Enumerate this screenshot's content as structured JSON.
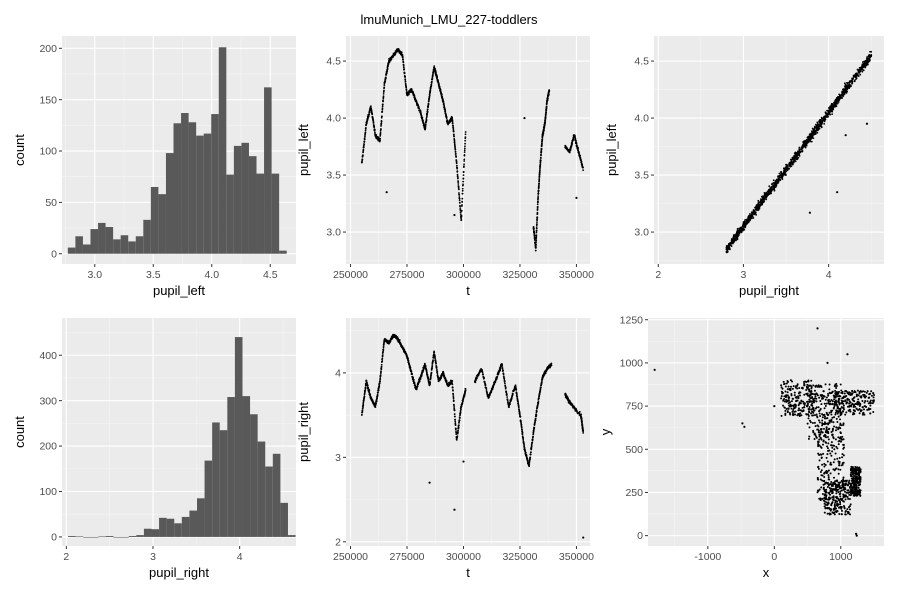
{
  "figure": {
    "title": "lmuMunich_LMU_227-toddlers",
    "colors": {
      "panel_bg": "#ebebeb",
      "grid_major": "#ffffff",
      "bar_fill": "#595959",
      "point": "#000000",
      "tick_text": "#4d4d4d"
    }
  },
  "chart_data": [
    {
      "type": "bar",
      "subtype": "histogram",
      "xlabel": "pupil_left",
      "ylabel": "count",
      "xlim": [
        2.72,
        4.72
      ],
      "ylim": [
        -10,
        212
      ],
      "xticks": [
        3.0,
        3.5,
        4.0,
        4.5
      ],
      "yticks": [
        0,
        50,
        100,
        150,
        200
      ],
      "xtick_labels": [
        "3.0",
        "3.5",
        "4.0",
        "4.5"
      ],
      "ytick_labels": [
        "0",
        "50",
        "100",
        "150",
        "200"
      ],
      "bin_start": 2.77,
      "bin_width": 0.0645,
      "values": [
        6,
        17,
        9,
        24,
        30,
        26,
        14,
        18,
        12,
        17,
        33,
        65,
        58,
        98,
        127,
        137,
        128,
        115,
        117,
        136,
        201,
        77,
        105,
        108,
        95,
        78,
        162,
        78,
        3
      ]
    },
    {
      "type": "scatter",
      "xlabel": "t",
      "ylabel": "pupil_left",
      "xlim": [
        248000,
        356000
      ],
      "ylim": [
        2.72,
        4.72
      ],
      "xticks": [
        250000,
        275000,
        300000,
        325000,
        350000
      ],
      "yticks": [
        3.0,
        3.5,
        4.0,
        4.5
      ],
      "xtick_labels": [
        "250000",
        "275000",
        "300000",
        "325000",
        "350000"
      ],
      "ytick_labels": [
        "3.0",
        "3.5",
        "4.0",
        "4.5"
      ],
      "segments": [
        {
          "x": [
            255000,
            257000,
            259000,
            261000,
            263000,
            265000,
            267000,
            269000,
            271000,
            273000,
            275000,
            277000,
            279000,
            281000,
            283000,
            285000,
            287000,
            289000,
            291000,
            293000,
            295000,
            297000,
            299000,
            301000
          ],
          "y": [
            3.6,
            3.95,
            4.1,
            3.85,
            3.8,
            4.3,
            4.5,
            4.55,
            4.6,
            4.55,
            4.2,
            4.25,
            4.15,
            4.05,
            3.9,
            4.2,
            4.45,
            4.3,
            4.15,
            3.95,
            4.0,
            3.6,
            3.1,
            3.9
          ]
        },
        {
          "x": [
            331000,
            332000,
            333000,
            334000,
            335000,
            336000,
            337000,
            338000
          ],
          "y": [
            3.05,
            2.85,
            3.3,
            3.6,
            3.85,
            3.95,
            4.15,
            4.25
          ]
        },
        {
          "x": [
            345000,
            347000,
            349000,
            351000,
            353000
          ],
          "y": [
            3.75,
            3.7,
            3.85,
            3.7,
            3.55
          ]
        }
      ],
      "outliers": [
        [
          266000,
          3.35
        ],
        [
          296000,
          3.15
        ],
        [
          327000,
          4.0
        ],
        [
          350000,
          3.3
        ]
      ]
    },
    {
      "type": "scatter",
      "xlabel": "pupil_right",
      "ylabel": "pupil_left",
      "xlim": [
        1.95,
        4.65
      ],
      "ylim": [
        2.72,
        4.72
      ],
      "xticks": [
        2,
        3,
        4
      ],
      "yticks": [
        3.0,
        3.5,
        4.0,
        4.5
      ],
      "xtick_labels": [
        "2",
        "3",
        "4"
      ],
      "ytick_labels": [
        "3.0",
        "3.5",
        "4.0",
        "4.5"
      ],
      "trend": {
        "x_range": [
          2.8,
          4.5
        ],
        "slope": 1.0,
        "intercept": 0.05
      },
      "outliers": [
        [
          3.78,
          3.17
        ],
        [
          4.1,
          3.35
        ],
        [
          4.2,
          3.85
        ],
        [
          4.45,
          3.95
        ]
      ]
    },
    {
      "type": "bar",
      "subtype": "histogram",
      "xlabel": "pupil_right",
      "ylabel": "count",
      "xlim": [
        1.95,
        4.65
      ],
      "ylim": [
        -20,
        482
      ],
      "xticks": [
        2,
        3,
        4
      ],
      "yticks": [
        0,
        100,
        200,
        300,
        400
      ],
      "xtick_labels": [
        "2",
        "3",
        "4"
      ],
      "ytick_labels": [
        "0",
        "100",
        "200",
        "300",
        "400"
      ],
      "bin_start": 2.02,
      "bin_width": 0.0875,
      "values": [
        2,
        1,
        0,
        0,
        1,
        2,
        0,
        0,
        2,
        4,
        18,
        17,
        42,
        40,
        30,
        44,
        58,
        85,
        168,
        252,
        235,
        308,
        440,
        310,
        270,
        210,
        155,
        183,
        75,
        4
      ]
    },
    {
      "type": "scatter",
      "xlabel": "t",
      "ylabel": "pupil_right",
      "xlim": [
        248000,
        356000
      ],
      "ylim": [
        1.95,
        4.65
      ],
      "xticks": [
        250000,
        275000,
        300000,
        325000,
        350000
      ],
      "yticks": [
        2,
        3,
        4
      ],
      "xtick_labels": [
        "250000",
        "275000",
        "300000",
        "325000",
        "350000"
      ],
      "ytick_labels": [
        "2",
        "3",
        "4"
      ],
      "segments": [
        {
          "x": [
            255000,
            257000,
            259000,
            261000,
            263000,
            265000,
            267000,
            269000,
            271000,
            273000,
            275000,
            277000,
            279000,
            281000,
            283000,
            285000,
            287000,
            289000,
            291000,
            293000,
            295000,
            297000,
            299000,
            301000
          ],
          "y": [
            3.5,
            3.9,
            3.7,
            3.6,
            3.9,
            4.4,
            4.35,
            4.45,
            4.4,
            4.3,
            4.2,
            4.0,
            3.8,
            3.95,
            4.1,
            3.85,
            4.25,
            3.9,
            4.0,
            3.85,
            3.9,
            3.2,
            3.6,
            3.8
          ]
        },
        {
          "x": [
            305000,
            308000,
            311000,
            314000,
            317000,
            320000,
            323000,
            325000,
            327000,
            329000,
            331000,
            333000,
            335000,
            337000,
            339000
          ],
          "y": [
            3.9,
            4.05,
            3.7,
            3.9,
            4.1,
            3.6,
            3.85,
            3.5,
            3.1,
            2.9,
            3.3,
            3.65,
            3.95,
            4.05,
            4.1
          ]
        },
        {
          "x": [
            345000,
            346000,
            347000,
            352000,
            353000
          ],
          "y": [
            3.75,
            3.7,
            3.65,
            3.5,
            3.3
          ]
        }
      ],
      "outliers": [
        [
          285000,
          2.7
        ],
        [
          296000,
          2.38
        ],
        [
          353000,
          2.05
        ],
        [
          300000,
          2.95
        ]
      ]
    },
    {
      "type": "scatter",
      "xlabel": "x",
      "ylabel": "y",
      "xlim": [
        -1900,
        1650
      ],
      "ylim": [
        -60,
        1260
      ],
      "xticks": [
        -1000,
        0,
        1000
      ],
      "yticks": [
        0,
        250,
        500,
        750,
        1000,
        1250
      ],
      "xtick_labels": [
        "-1000",
        "0",
        "1000"
      ],
      "ytick_labels": [
        "0",
        "250",
        "500",
        "750",
        "1000",
        "1250"
      ],
      "clusters": [
        {
          "x": [
            100,
            600
          ],
          "y": [
            690,
            900
          ]
        },
        {
          "x": [
            500,
            1000
          ],
          "y": [
            550,
            880
          ]
        },
        {
          "x": [
            900,
            1500
          ],
          "y": [
            700,
            840
          ]
        },
        {
          "x": [
            650,
            1050
          ],
          "y": [
            200,
            650
          ]
        },
        {
          "x": [
            750,
            1150
          ],
          "y": [
            120,
            320
          ]
        },
        {
          "x": [
            1150,
            1300
          ],
          "y": [
            230,
            400
          ]
        }
      ],
      "outliers": [
        [
          -1800,
          960
        ],
        [
          -480,
          650
        ],
        [
          -450,
          630
        ],
        [
          650,
          1200
        ],
        [
          800,
          1000
        ],
        [
          1230,
          10
        ],
        [
          1240,
          0
        ],
        [
          0,
          750
        ],
        [
          1100,
          1050
        ]
      ]
    }
  ]
}
